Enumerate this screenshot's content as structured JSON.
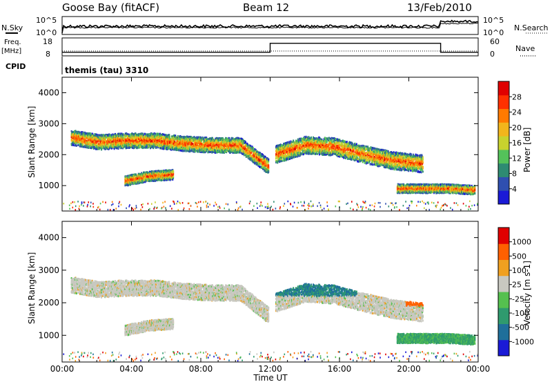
{
  "header": {
    "station": "Goose Bay (fitACF)",
    "beam": "Beam 12",
    "date": "13/Feb/2010"
  },
  "summary": {
    "nsky_label": "N.Sky",
    "nsearch_label": "N.Search",
    "freq_label": "Freq.",
    "freq_unit": "[MHz]",
    "nave_label": "Nave",
    "cpid_label": "CPID",
    "cpid_value": "themis (tau) 3310",
    "noise_ticks_left": [
      "10^5",
      "10^0"
    ],
    "noise_ticks_right": [
      "10^5",
      "10^0"
    ],
    "freq_ticks": [
      "18",
      "8"
    ],
    "nave_ticks": [
      "60",
      "0"
    ],
    "freq_steps": [
      {
        "from": "00:00",
        "to": "12:00",
        "value": 10
      },
      {
        "from": "12:00",
        "to": "21:50",
        "value": 15
      },
      {
        "from": "21:50",
        "to": "24:00",
        "value": 10
      }
    ]
  },
  "chart_data": [
    {
      "type": "heatmap",
      "quantity": "Power",
      "ylabel": "Slant Range [km]",
      "yticks": [
        "1000",
        "2000",
        "3000",
        "4000"
      ],
      "ylim": [
        180,
        4500
      ],
      "xlim": [
        0,
        24
      ],
      "colorbar": {
        "label": "Power [dB]",
        "ticks": [
          "4",
          "8",
          "12",
          "16",
          "20",
          "24",
          "28"
        ],
        "colors": [
          "#1a1ad6",
          "#2f4fb0",
          "#2e8b72",
          "#54c25a",
          "#c8d22e",
          "#f2b51c",
          "#ff7a00",
          "#ff3000",
          "#e00000"
        ]
      },
      "bands": [
        {
          "t0": 0.5,
          "t1": 11.9,
          "r": [
            2550,
            2400,
            2450,
            2450,
            2350,
            2300,
            2300,
            1600
          ],
          "w": 300
        },
        {
          "t0": 12.3,
          "t1": 20.8,
          "r": [
            2000,
            2300,
            2250,
            2000,
            1800,
            1700
          ],
          "w": 350
        },
        {
          "t0": 3.6,
          "t1": 6.4,
          "r": [
            1150,
            1300,
            1350
          ],
          "w": 200
        },
        {
          "t0": 19.3,
          "t1": 23.8,
          "r": [
            900,
            900,
            900,
            850
          ],
          "w": 180
        }
      ]
    },
    {
      "type": "heatmap",
      "quantity": "Velocity",
      "ylabel": "Slant Range [km]",
      "yticks": [
        "1000",
        "2000",
        "3000",
        "4000"
      ],
      "ylim": [
        180,
        4500
      ],
      "xlim": [
        0,
        24
      ],
      "colorbar": {
        "label": "Velocity [m s-1]",
        "ticks": [
          "1000",
          "500",
          "100",
          "25",
          "-25",
          "-100",
          "-500",
          "-1000"
        ],
        "colors": [
          "#1a1ad6",
          "#1f6f9a",
          "#2f9a6e",
          "#55c04f",
          "#c8c8c0",
          "#f0a020",
          "#ff6000",
          "#e00000"
        ]
      }
    }
  ],
  "time_axis": {
    "label": "Time UT",
    "ticks": [
      "00:00",
      "04:00",
      "08:00",
      "12:00",
      "16:00",
      "20:00",
      "00:00"
    ]
  }
}
